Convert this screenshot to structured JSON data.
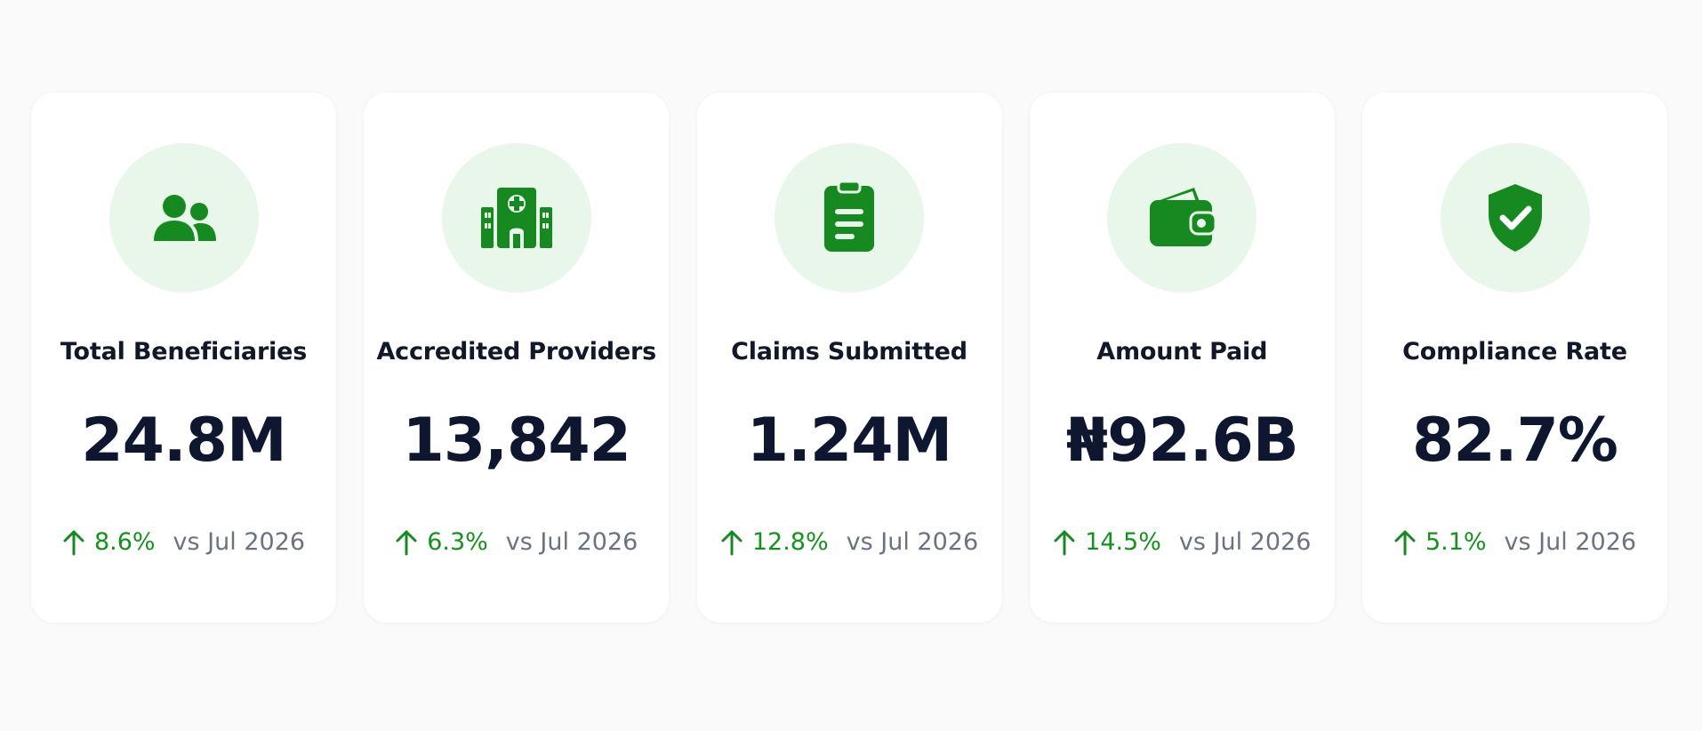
{
  "colors": {
    "accent": "#168a20",
    "icon_bg": "#e9f6ea",
    "value_text": "#0f1730",
    "comparison_text": "#6b7280"
  },
  "cards": [
    {
      "icon": "users-icon",
      "label": "Total Beneficiaries",
      "value": "24.8M",
      "change": "8.6%",
      "comparison": "vs Jul 2026"
    },
    {
      "icon": "hospital-icon",
      "label": "Accredited Providers",
      "value": "13,842",
      "change": "6.3%",
      "comparison": "vs Jul 2026"
    },
    {
      "icon": "clipboard-icon",
      "label": "Claims Submitted",
      "value": "1.24M",
      "change": "12.8%",
      "comparison": "vs Jul 2026"
    },
    {
      "icon": "wallet-icon",
      "label": "Amount Paid",
      "value": "₦92.6B",
      "change": "14.5%",
      "comparison": "vs Jul 2026"
    },
    {
      "icon": "shield-check-icon",
      "label": "Compliance Rate",
      "value": "82.7%",
      "change": "5.1%",
      "comparison": "vs Jul 2026"
    }
  ]
}
